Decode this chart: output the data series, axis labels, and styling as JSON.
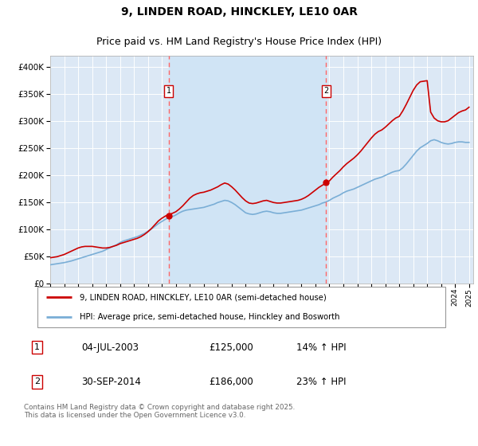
{
  "title": "9, LINDEN ROAD, HINCKLEY, LE10 0AR",
  "subtitle": "Price paid vs. HM Land Registry's House Price Index (HPI)",
  "legend_line1": "9, LINDEN ROAD, HINCKLEY, LE10 0AR (semi-detached house)",
  "legend_line2": "HPI: Average price, semi-detached house, Hinckley and Bosworth",
  "footer": "Contains HM Land Registry data © Crown copyright and database right 2025.\nThis data is licensed under the Open Government Licence v3.0.",
  "marker1_date": "04-JUL-2003",
  "marker1_price": 125000,
  "marker1_hpi": "14% ↑ HPI",
  "marker2_date": "30-SEP-2014",
  "marker2_price": 186000,
  "marker2_hpi": "23% ↑ HPI",
  "ylim": [
    0,
    420000
  ],
  "yticks": [
    0,
    50000,
    100000,
    150000,
    200000,
    250000,
    300000,
    350000,
    400000
  ],
  "plot_bg_color": "#dce8f5",
  "grid_color": "#ffffff",
  "red_line_color": "#cc0000",
  "blue_line_color": "#7aaed6",
  "shade_color": "#d0e4f5",
  "marker_box_color": "#cc0000",
  "vline_color": "#ff6666",
  "title_fontsize": 10,
  "subtitle_fontsize": 9,
  "hpi_x": [
    1995.0,
    1995.25,
    1995.5,
    1995.75,
    1996.0,
    1996.25,
    1996.5,
    1996.75,
    1997.0,
    1997.25,
    1997.5,
    1997.75,
    1998.0,
    1998.25,
    1998.5,
    1998.75,
    1999.0,
    1999.25,
    1999.5,
    1999.75,
    2000.0,
    2000.25,
    2000.5,
    2000.75,
    2001.0,
    2001.25,
    2001.5,
    2001.75,
    2002.0,
    2002.25,
    2002.5,
    2002.75,
    2003.0,
    2003.25,
    2003.5,
    2003.75,
    2004.0,
    2004.25,
    2004.5,
    2004.75,
    2005.0,
    2005.25,
    2005.5,
    2005.75,
    2006.0,
    2006.25,
    2006.5,
    2006.75,
    2007.0,
    2007.25,
    2007.5,
    2007.75,
    2008.0,
    2008.25,
    2008.5,
    2008.75,
    2009.0,
    2009.25,
    2009.5,
    2009.75,
    2010.0,
    2010.25,
    2010.5,
    2010.75,
    2011.0,
    2011.25,
    2011.5,
    2011.75,
    2012.0,
    2012.25,
    2012.5,
    2012.75,
    2013.0,
    2013.25,
    2013.5,
    2013.75,
    2014.0,
    2014.25,
    2014.5,
    2014.75,
    2015.0,
    2015.25,
    2015.5,
    2015.75,
    2016.0,
    2016.25,
    2016.5,
    2016.75,
    2017.0,
    2017.25,
    2017.5,
    2017.75,
    2018.0,
    2018.25,
    2018.5,
    2018.75,
    2019.0,
    2019.25,
    2019.5,
    2019.75,
    2020.0,
    2020.25,
    2020.5,
    2020.75,
    2021.0,
    2021.25,
    2021.5,
    2021.75,
    2022.0,
    2022.25,
    2022.5,
    2022.75,
    2023.0,
    2023.25,
    2023.5,
    2023.75,
    2024.0,
    2024.25,
    2024.5,
    2024.75,
    2025.0
  ],
  "hpi_y": [
    34000,
    35000,
    36000,
    37000,
    38000,
    39500,
    41000,
    43000,
    45000,
    47000,
    49000,
    51000,
    53000,
    55000,
    57000,
    59000,
    62000,
    65000,
    68000,
    71000,
    75000,
    78000,
    80000,
    82000,
    84000,
    86000,
    89000,
    92000,
    96000,
    100000,
    105000,
    110000,
    114000,
    118000,
    121000,
    123000,
    126000,
    130000,
    133000,
    135000,
    136000,
    137000,
    138000,
    139000,
    140000,
    142000,
    144000,
    146000,
    149000,
    151000,
    153000,
    152000,
    149000,
    145000,
    140000,
    135000,
    130000,
    128000,
    127000,
    128000,
    130000,
    132000,
    133000,
    132000,
    130000,
    129000,
    129000,
    130000,
    131000,
    132000,
    133000,
    134000,
    135000,
    137000,
    139000,
    141000,
    143000,
    145000,
    148000,
    150000,
    153000,
    157000,
    160000,
    163000,
    167000,
    170000,
    172000,
    174000,
    177000,
    180000,
    183000,
    186000,
    189000,
    192000,
    194000,
    196000,
    199000,
    202000,
    205000,
    207000,
    208000,
    213000,
    220000,
    228000,
    236000,
    244000,
    250000,
    254000,
    258000,
    263000,
    265000,
    263000,
    260000,
    258000,
    257000,
    258000,
    260000,
    261000,
    261000,
    260000,
    260000
  ],
  "red_x": [
    1995.0,
    1995.25,
    1995.5,
    1995.75,
    1996.0,
    1996.25,
    1996.5,
    1996.75,
    1997.0,
    1997.25,
    1997.5,
    1997.75,
    1998.0,
    1998.25,
    1998.5,
    1998.75,
    1999.0,
    1999.25,
    1999.5,
    1999.75,
    2000.0,
    2000.25,
    2000.5,
    2000.75,
    2001.0,
    2001.25,
    2001.5,
    2001.75,
    2002.0,
    2002.25,
    2002.5,
    2002.75,
    2003.0,
    2003.25,
    2003.5,
    2003.75,
    2004.0,
    2004.25,
    2004.5,
    2004.75,
    2005.0,
    2005.25,
    2005.5,
    2005.75,
    2006.0,
    2006.25,
    2006.5,
    2006.75,
    2007.0,
    2007.25,
    2007.5,
    2007.75,
    2008.0,
    2008.25,
    2008.5,
    2008.75,
    2009.0,
    2009.25,
    2009.5,
    2009.75,
    2010.0,
    2010.25,
    2010.5,
    2010.75,
    2011.0,
    2011.25,
    2011.5,
    2011.75,
    2012.0,
    2012.25,
    2012.5,
    2012.75,
    2013.0,
    2013.25,
    2013.5,
    2013.75,
    2014.0,
    2014.25,
    2014.5,
    2014.75,
    2015.0,
    2015.25,
    2015.5,
    2015.75,
    2016.0,
    2016.25,
    2016.5,
    2016.75,
    2017.0,
    2017.25,
    2017.5,
    2017.75,
    2018.0,
    2018.25,
    2018.5,
    2018.75,
    2019.0,
    2019.25,
    2019.5,
    2019.75,
    2020.0,
    2020.25,
    2020.5,
    2020.75,
    2021.0,
    2021.25,
    2021.5,
    2021.75,
    2022.0,
    2022.25,
    2022.5,
    2022.75,
    2023.0,
    2023.25,
    2023.5,
    2023.75,
    2024.0,
    2024.25,
    2024.5,
    2024.75,
    2025.0
  ],
  "red_y": [
    47000,
    48000,
    49000,
    51000,
    53000,
    56000,
    59000,
    62000,
    65000,
    67000,
    68000,
    68000,
    68000,
    67000,
    66000,
    65000,
    65000,
    66000,
    68000,
    70000,
    73000,
    75000,
    77000,
    79000,
    81000,
    83000,
    86000,
    90000,
    95000,
    101000,
    108000,
    115000,
    120000,
    124000,
    127000,
    129000,
    132000,
    137000,
    143000,
    150000,
    157000,
    162000,
    165000,
    167000,
    168000,
    170000,
    172000,
    175000,
    178000,
    182000,
    185000,
    183000,
    178000,
    172000,
    165000,
    158000,
    152000,
    148000,
    147000,
    148000,
    150000,
    152000,
    153000,
    151000,
    149000,
    148000,
    148000,
    149000,
    150000,
    151000,
    152000,
    153000,
    155000,
    158000,
    162000,
    167000,
    172000,
    177000,
    181000,
    185000,
    189000,
    196000,
    202000,
    208000,
    215000,
    221000,
    226000,
    231000,
    237000,
    244000,
    252000,
    260000,
    268000,
    275000,
    280000,
    283000,
    288000,
    294000,
    300000,
    305000,
    308000,
    318000,
    330000,
    343000,
    356000,
    366000,
    372000,
    373000,
    374000,
    316000,
    305000,
    300000,
    298000,
    298000,
    300000,
    305000,
    310000,
    315000,
    318000,
    320000,
    325000
  ]
}
